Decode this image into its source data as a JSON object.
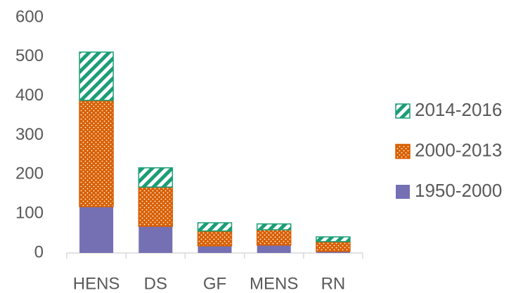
{
  "chart_data": {
    "type": "stacked_bar",
    "categories": [
      "HENS",
      "DS",
      "GF",
      "MENS",
      "RN"
    ],
    "series": [
      {
        "name": "1950-2000",
        "color": "#7570b3",
        "values": [
          118,
          68,
          18,
          20,
          4
        ]
      },
      {
        "name": "2000-2013",
        "color": "#d95f02",
        "values": [
          271,
          100,
          38,
          39,
          25
        ]
      },
      {
        "name": "2014-2016",
        "color": "#1b9e77",
        "values": [
          123,
          49,
          21,
          15,
          12
        ]
      }
    ],
    "ylim": [
      0,
      600
    ],
    "yticks": [
      0,
      100,
      200,
      300,
      400,
      500,
      600
    ],
    "grid": false,
    "legend": "right"
  }
}
